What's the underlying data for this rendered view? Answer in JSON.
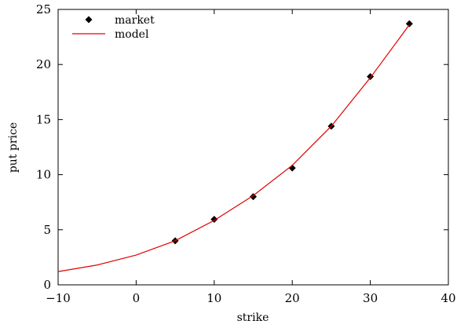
{
  "chart_data": {
    "type": "line",
    "title": "",
    "xlabel": "strike",
    "ylabel": "put price",
    "xlim": [
      -10,
      40
    ],
    "ylim": [
      0,
      25
    ],
    "xticks": [
      -10,
      0,
      10,
      20,
      30,
      40
    ],
    "yticks": [
      0,
      5,
      10,
      15,
      20,
      25
    ],
    "xtick_labels": [
      "−10",
      "0",
      "10",
      "20",
      "30",
      "40"
    ],
    "ytick_labels": [
      "0",
      "5",
      "10",
      "15",
      "20",
      "25"
    ],
    "grid": false,
    "legend_position": "top-left",
    "series": [
      {
        "name": "market",
        "kind": "scatter",
        "marker": "diamond",
        "color": "#000000",
        "x": [
          5,
          10,
          15,
          20,
          25,
          30,
          35
        ],
        "y": [
          4.0,
          5.95,
          8.0,
          10.6,
          14.4,
          18.9,
          23.7
        ]
      },
      {
        "name": "model",
        "kind": "line",
        "color": "#e00000",
        "x": [
          -10,
          -5,
          0,
          5,
          10,
          15,
          20,
          25,
          30,
          35
        ],
        "y": [
          1.2,
          1.8,
          2.7,
          4.0,
          5.85,
          8.1,
          10.85,
          14.4,
          18.8,
          23.6
        ]
      }
    ]
  }
}
